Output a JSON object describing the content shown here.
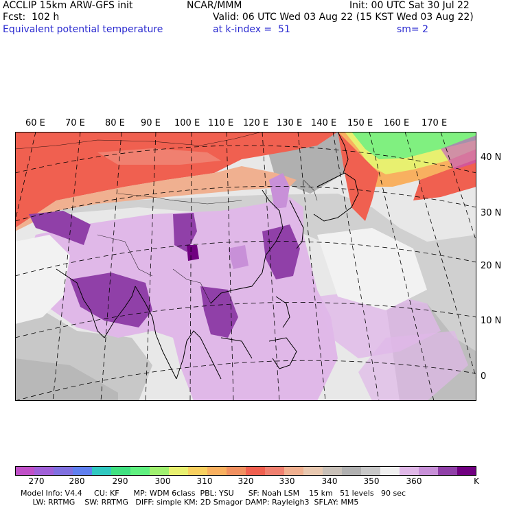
{
  "header": {
    "model_line": "ACCLIP 15km ARW-GFS init",
    "forecast_line": "Fcst:  102 h",
    "field_line": "Equivalent potential temperature",
    "center": "NCAR/MMM",
    "valid_line": "Valid: 06 UTC Wed 03 Aug 22 (15 KST Wed 03 Aug 22)",
    "level_line": "at k-index =  51",
    "init_line": "Init: 00 UTC Sat 30 Jul 22",
    "smooth_line": "sm= 2"
  },
  "map": {
    "lon_labels": [
      "60 E",
      "70 E",
      "80 E",
      "90 E",
      "100 E",
      "110 E",
      "120 E",
      "130 E",
      "140 E",
      "150 E",
      "160 E",
      "170 E"
    ],
    "lat_labels": [
      "40 N",
      "30 N",
      "20 N",
      "10 N",
      "0"
    ]
  },
  "colorbar": {
    "unit": "K",
    "labels": [
      "270",
      "280",
      "290",
      "300",
      "310",
      "320",
      "330",
      "340",
      "350",
      "360"
    ],
    "colors": [
      "#c050c8",
      "#a060d8",
      "#8070e0",
      "#6080f0",
      "#30c8c0",
      "#40e080",
      "#60f080",
      "#a0f070",
      "#e8f070",
      "#f8d060",
      "#f8b060",
      "#f09060",
      "#f06050",
      "#f08070",
      "#f0b090",
      "#e8c8b0",
      "#c8c0b8",
      "#b0b0b0",
      "#c8c8c8",
      "#f0f0f0",
      "#e0b8e8",
      "#c890d8",
      "#9040a8",
      "#700080"
    ]
  },
  "footer": {
    "line1": "Model Info: V4.4     CU: KF      MP: WDM 6class  PBL: YSU      SF: Noah LSM    15 km   51 levels   90 sec",
    "line2": "     LW: RRTMG    SW: RRTMG   DIFF: simple KM: 2D Smagor DAMP: Rayleigh3  SFLAY: MM5"
  }
}
